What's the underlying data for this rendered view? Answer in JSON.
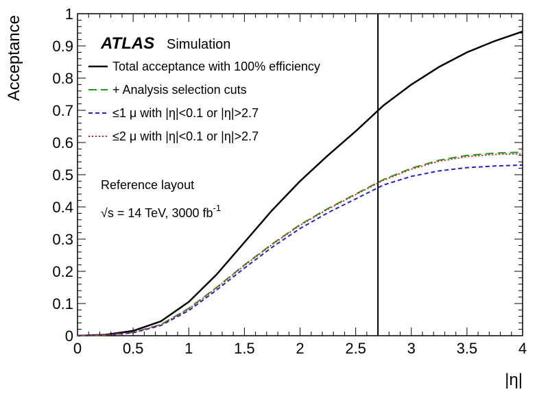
{
  "chart_data": {
    "type": "line",
    "xlabel": "|η|",
    "ylabel": "Acceptance",
    "xlim": [
      0,
      4
    ],
    "ylim": [
      0,
      1
    ],
    "x_ticks": [
      "0",
      "0.5",
      "1",
      "1.5",
      "2",
      "2.5",
      "3",
      "3.5",
      "4"
    ],
    "y_ticks": [
      "0",
      "0.1",
      "0.2",
      "0.3",
      "0.4",
      "0.5",
      "0.6",
      "0.7",
      "0.8",
      "0.9",
      "1"
    ],
    "grid": false,
    "legend_position": "top-left",
    "vertical_line_x": 2.7,
    "x": [
      0,
      0.25,
      0.5,
      0.75,
      1.0,
      1.25,
      1.5,
      1.75,
      2.0,
      2.25,
      2.5,
      2.75,
      3.0,
      3.25,
      3.5,
      3.75,
      4.0
    ],
    "series": [
      {
        "name": "Total acceptance with 100% efficiency",
        "color": "#000000",
        "dash": "solid",
        "values": [
          0.0,
          0.003,
          0.015,
          0.045,
          0.105,
          0.19,
          0.29,
          0.39,
          0.48,
          0.56,
          0.635,
          0.715,
          0.78,
          0.835,
          0.88,
          0.915,
          0.945
        ]
      },
      {
        "name": "+ Analysis selection cuts",
        "color": "#1a9e1a",
        "dash": "long-dash",
        "values": [
          0.0,
          0.002,
          0.01,
          0.035,
          0.085,
          0.15,
          0.22,
          0.285,
          0.345,
          0.395,
          0.44,
          0.485,
          0.52,
          0.545,
          0.56,
          0.567,
          0.57
        ]
      },
      {
        "name": "≤1 μ with |η|<0.1 or |η|>2.7",
        "color": "#1f1fe0",
        "dash": "short-dash",
        "values": [
          0.0,
          0.002,
          0.009,
          0.032,
          0.078,
          0.142,
          0.21,
          0.275,
          0.333,
          0.382,
          0.425,
          0.468,
          0.495,
          0.512,
          0.522,
          0.527,
          0.53
        ]
      },
      {
        "name": "≤2 μ with |η|<0.1 or |η|>2.7",
        "color": "#e01a1a",
        "dash": "dotted",
        "values": [
          0.0,
          0.002,
          0.01,
          0.034,
          0.083,
          0.148,
          0.218,
          0.283,
          0.343,
          0.393,
          0.438,
          0.483,
          0.517,
          0.542,
          0.556,
          0.563,
          0.565
        ]
      }
    ],
    "annotations": {
      "atlas": "ATLAS",
      "simulation": "Simulation",
      "layout": "Reference layout",
      "energy": "√s = 14 TeV, 3000 fb",
      "energy_sup": "-1"
    }
  }
}
